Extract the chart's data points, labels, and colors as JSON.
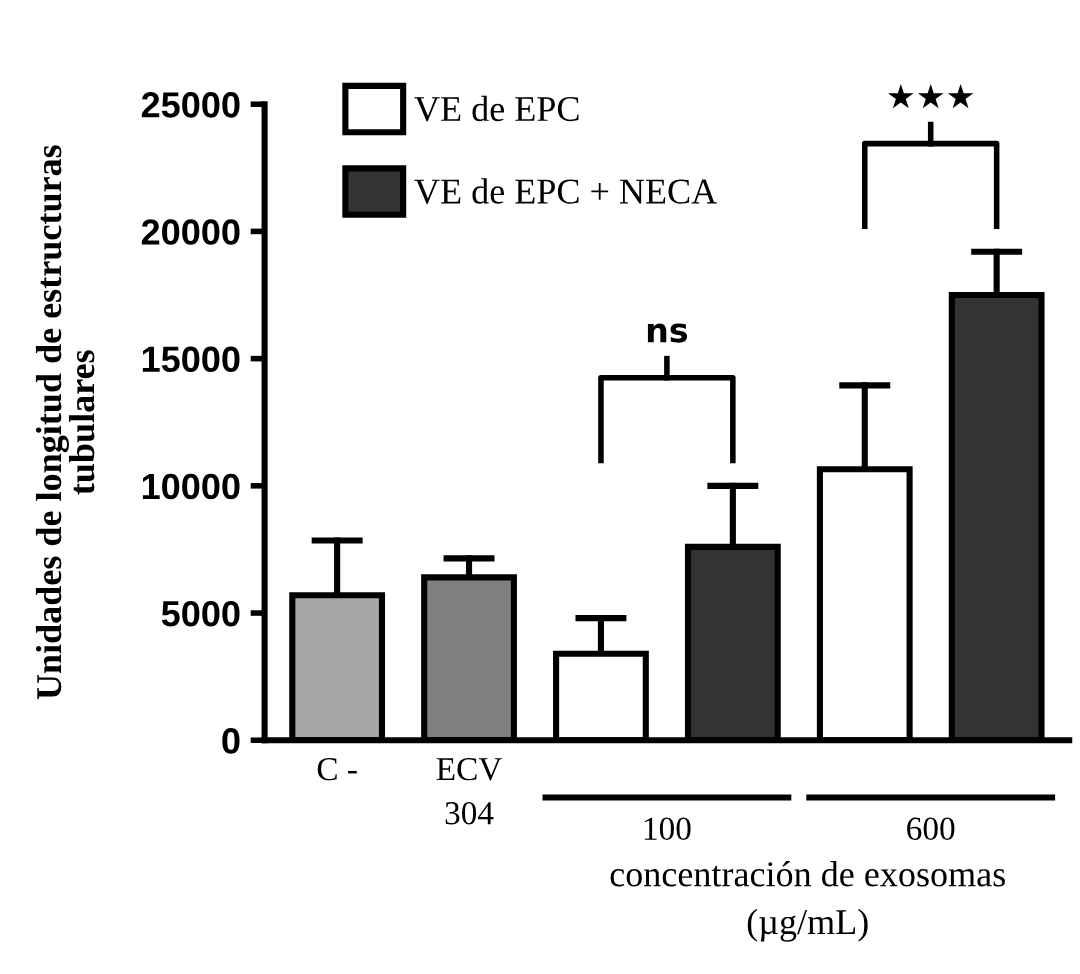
{
  "chart_data": {
    "type": "bar",
    "ylabel": "Unidades de longitud de estructuras\ntubulares",
    "xlabel": "concentración de exosomas\n(µg/mL)",
    "categories": [
      "C -",
      "ECV\n304",
      null,
      null,
      null,
      null
    ],
    "series": [
      {
        "colors": [
          "#a6a6a6",
          "#7f7f7f",
          null,
          null,
          null,
          null
        ],
        "values": [
          5700,
          6400,
          null,
          null,
          null,
          null
        ],
        "errors": [
          2150,
          750,
          null,
          null,
          null,
          null
        ]
      },
      {
        "name": "VE de EPC",
        "color": "#ffffff",
        "values": [
          null,
          null,
          3400,
          null,
          10650,
          null
        ],
        "errors": [
          null,
          null,
          1400,
          null,
          3300,
          null
        ]
      },
      {
        "name": "VE de EPC + NECA",
        "color": "#333333",
        "values": [
          null,
          null,
          null,
          7600,
          null,
          17500
        ],
        "errors": [
          null,
          null,
          null,
          2400,
          null,
          1700
        ]
      }
    ],
    "ylim": [
      0,
      25000
    ],
    "yticks": [
      0,
      5000,
      10000,
      15000,
      20000,
      25000
    ],
    "grid": false,
    "legend": "top left",
    "annotations": [
      "100",
      "600",
      "ns",
      "★★★"
    ]
  }
}
